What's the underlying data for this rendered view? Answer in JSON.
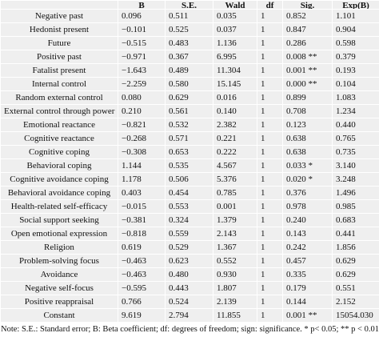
{
  "table": {
    "header": [
      "",
      "B",
      "S.E.",
      "Wald",
      "df",
      "Sig.",
      "Exp(B)"
    ],
    "rows": [
      [
        "Negative past",
        "0.096",
        "0.511",
        "0.035",
        "1",
        "0.852",
        "1.101"
      ],
      [
        "Hedonist present",
        "−0.101",
        "0.525",
        "0.037",
        "1",
        "0.847",
        "0.904"
      ],
      [
        "Future",
        "−0.515",
        "0.483",
        "1.136",
        "1",
        "0.286",
        "0.598"
      ],
      [
        "Positive past",
        "−0.971",
        "0.367",
        "6.995",
        "1",
        "0.008 **",
        "0.379"
      ],
      [
        "Fatalist present",
        "−1.643",
        "0.489",
        "11.304",
        "1",
        "0.001 **",
        "0.193"
      ],
      [
        "Internal control",
        "−2.259",
        "0.580",
        "15.145",
        "1",
        "0.000 **",
        "0.104"
      ],
      [
        "Random external control",
        "0.080",
        "0.629",
        "0.016",
        "1",
        "0.899",
        "1.083"
      ],
      [
        "External control through power",
        "0.210",
        "0.561",
        "0.140",
        "1",
        "0.708",
        "1.234"
      ],
      [
        "Emotional reactance",
        "−0.821",
        "0.532",
        "2.382",
        "1",
        "0.123",
        "0.440"
      ],
      [
        "Cognitive reactance",
        "−0.268",
        "0.571",
        "0.221",
        "1",
        "0.638",
        "0.765"
      ],
      [
        "Cognitive coping",
        "−0.308",
        "0.653",
        "0.222",
        "1",
        "0.638",
        "0.735"
      ],
      [
        "Behavioral coping",
        "1.144",
        "0.535",
        "4.567",
        "1",
        "0.033 *",
        "3.140"
      ],
      [
        "Cognitive avoidance coping",
        "1.178",
        "0.506",
        "5.376",
        "1",
        "0.020 *",
        "3.248"
      ],
      [
        "Behavioral avoidance coping",
        "0.403",
        "0.454",
        "0.785",
        "1",
        "0.376",
        "1.496"
      ],
      [
        "Health-related self-efficacy",
        "−0.015",
        "0.553",
        "0.001",
        "1",
        "0.978",
        "0.985"
      ],
      [
        "Social support seeking",
        "−0.381",
        "0.324",
        "1.379",
        "1",
        "0.240",
        "0.683"
      ],
      [
        "Open emotional expression",
        "−0.818",
        "0.559",
        "2.143",
        "1",
        "0.143",
        "0.441"
      ],
      [
        "Religion",
        "0.619",
        "0.529",
        "1.367",
        "1",
        "0.242",
        "1.856"
      ],
      [
        "Problem-solving focus",
        "−0.463",
        "0.623",
        "0.552",
        "1",
        "0.457",
        "0.629"
      ],
      [
        "Avoidance",
        "−0.463",
        "0.480",
        "0.930",
        "1",
        "0.335",
        "0.629"
      ],
      [
        "Negative self-focus",
        "−0.595",
        "0.443",
        "1.807",
        "1",
        "0.179",
        "0.551"
      ],
      [
        "Positive reappraisal",
        "0.766",
        "0.524",
        "2.139",
        "1",
        "0.144",
        "2.152"
      ],
      [
        "Constant",
        "9.619",
        "2.794",
        "11.855",
        "1",
        "0.001 **",
        "15054.030"
      ]
    ],
    "note": "Note: S.E.: Standard error; B: Beta coefficient; df: degrees of freedom; sign: significance. * p< 0.05; ** p < 0.01."
  }
}
